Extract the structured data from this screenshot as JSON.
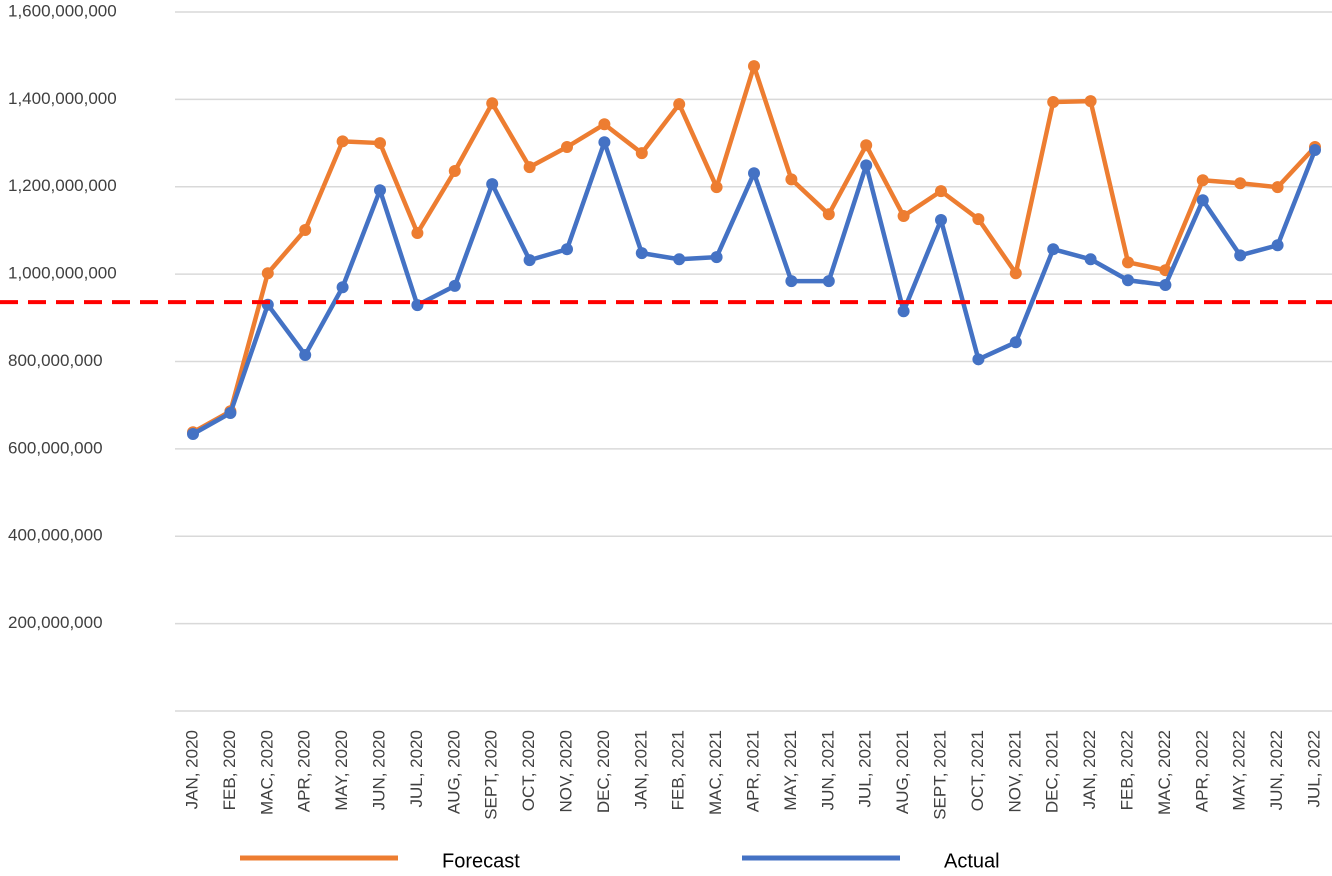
{
  "chart_data": {
    "type": "line",
    "categories": [
      "JAN, 2020",
      "FEB, 2020",
      "MAC, 2020",
      "APR, 2020",
      "MAY, 2020",
      "JUN, 2020",
      "JUL, 2020",
      "AUG, 2020",
      "SEPT, 2020",
      "OCT, 2020",
      "NOV, 2020",
      "DEC, 2020",
      "JAN, 2021",
      "FEB, 2021",
      "MAC, 2021",
      "APR, 2021",
      "MAY, 2021",
      "JUN, 2021",
      "JUL, 2021",
      "AUG, 2021",
      "SEPT, 2021",
      "OCT, 2021",
      "NOV, 2021",
      "DEC, 2021",
      "JAN, 2022",
      "FEB, 2022",
      "MAC, 2022",
      "APR, 2022",
      "MAY, 2022",
      "JUN, 2022",
      "JUL, 2022"
    ],
    "series": [
      {
        "name": "Forecast",
        "color": "#ed7d31",
        "values": [
          638000000,
          686000000,
          1002000000,
          1101000000,
          1304000000,
          1300000000,
          1094000000,
          1236000000,
          1391000000,
          1245000000,
          1291000000,
          1343000000,
          1277000000,
          1389000000,
          1199000000,
          1476000000,
          1217000000,
          1137000000,
          1295000000,
          1133000000,
          1190000000,
          1126000000,
          1002000000,
          1394000000,
          1396000000,
          1027000000,
          1009000000,
          1215000000,
          1208000000,
          1199000000,
          1291000000
        ]
      },
      {
        "name": "Actual",
        "color": "#4472c4",
        "values": [
          634000000,
          682000000,
          930000000,
          815000000,
          970000000,
          1192000000,
          929000000,
          973000000,
          1206000000,
          1032000000,
          1057000000,
          1302000000,
          1048000000,
          1034000000,
          1039000000,
          1231000000,
          984000000,
          984000000,
          1249000000,
          915000000,
          1124000000,
          805000000,
          844000000,
          1057000000,
          1034000000,
          986000000,
          975000000,
          1169000000,
          1043000000,
          1066000000,
          1284000000
        ]
      }
    ],
    "threshold": 936000000,
    "threshold_color": "#ff0000",
    "ylim": [
      0,
      1600000000
    ],
    "yticks": [
      {
        "value": 200000000,
        "label": "200,000,000"
      },
      {
        "value": 400000000,
        "label": "400,000,000"
      },
      {
        "value": 600000000,
        "label": "600,000,000"
      },
      {
        "value": 800000000,
        "label": "800,000,000"
      },
      {
        "value": 1000000000,
        "label": "1,000,000,000"
      },
      {
        "value": 1200000000,
        "label": "1,200,000,000"
      },
      {
        "value": 1400000000,
        "label": "1,400,000,000"
      },
      {
        "value": 1600000000,
        "label": "1,600,000,000"
      }
    ],
    "grid": true,
    "legend": "bottom"
  }
}
